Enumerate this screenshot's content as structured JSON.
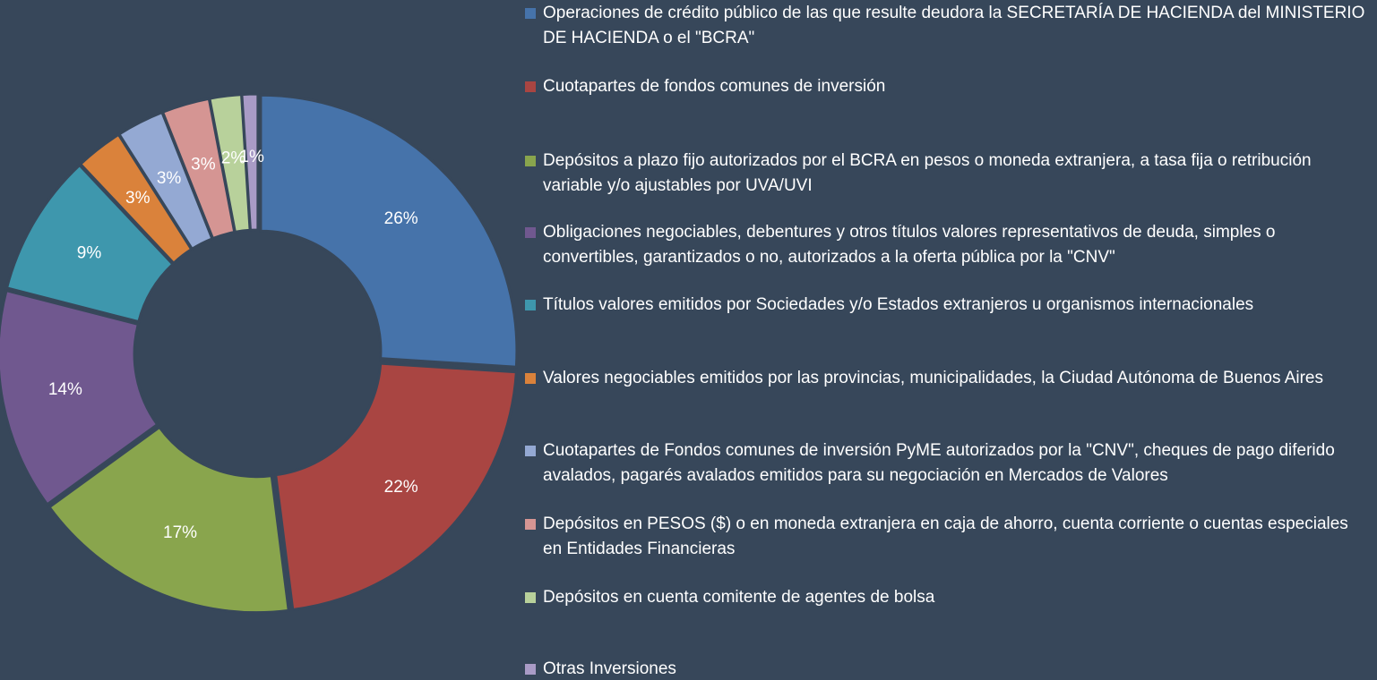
{
  "chart_data": {
    "type": "donut",
    "categories": [
      "Operaciones de crédito público de las que resulte deudora la SECRETARÍA DE HACIENDA del MINISTERIO DE HACIENDA o el \"BCRA\"",
      "Cuotapartes de fondos comunes de inversión",
      "Depósitos a plazo fijo autorizados por el BCRA en pesos o moneda extranjera, a tasa fija o retribución variable y/o ajustables por UVA/UVI",
      "Obligaciones negociables, debentures y otros títulos valores representativos de deuda, simples o convertibles, garantizados o no, autorizados a la oferta pública por la \"CNV\"",
      "Títulos valores emitidos por Sociedades y/o Estados extranjeros u organismos internacionales",
      "Valores negociables emitidos por las provincias, municipalidades, la Ciudad Autónoma de Buenos Aires",
      "Cuotapartes de Fondos comunes de inversión PyME autorizados por la \"CNV\", cheques de pago diferido avalados, pagarés avalados emitidos para su negociación en Mercados de Valores",
      "Depósitos en PESOS ($) o en moneda extranjera en caja de ahorro, cuenta corriente o cuentas especiales en Entidades Financieras",
      "Depósitos en cuenta comitente de agentes de bolsa",
      "Otras Inversiones"
    ],
    "values": [
      26,
      22,
      17,
      14,
      9,
      3,
      3,
      3,
      2,
      1
    ],
    "value_labels": [
      "26%",
      "22%",
      "17%",
      "14%",
      "9%",
      "3%",
      "3%",
      "3%",
      "2%",
      "1%"
    ],
    "colors": [
      "#4673aa",
      "#a94542",
      "#89a54d",
      "#70588f",
      "#3e97ad",
      "#da823b",
      "#94a9d3",
      "#d59593",
      "#b8d19b",
      "#a99bc6"
    ],
    "legend": "right"
  }
}
